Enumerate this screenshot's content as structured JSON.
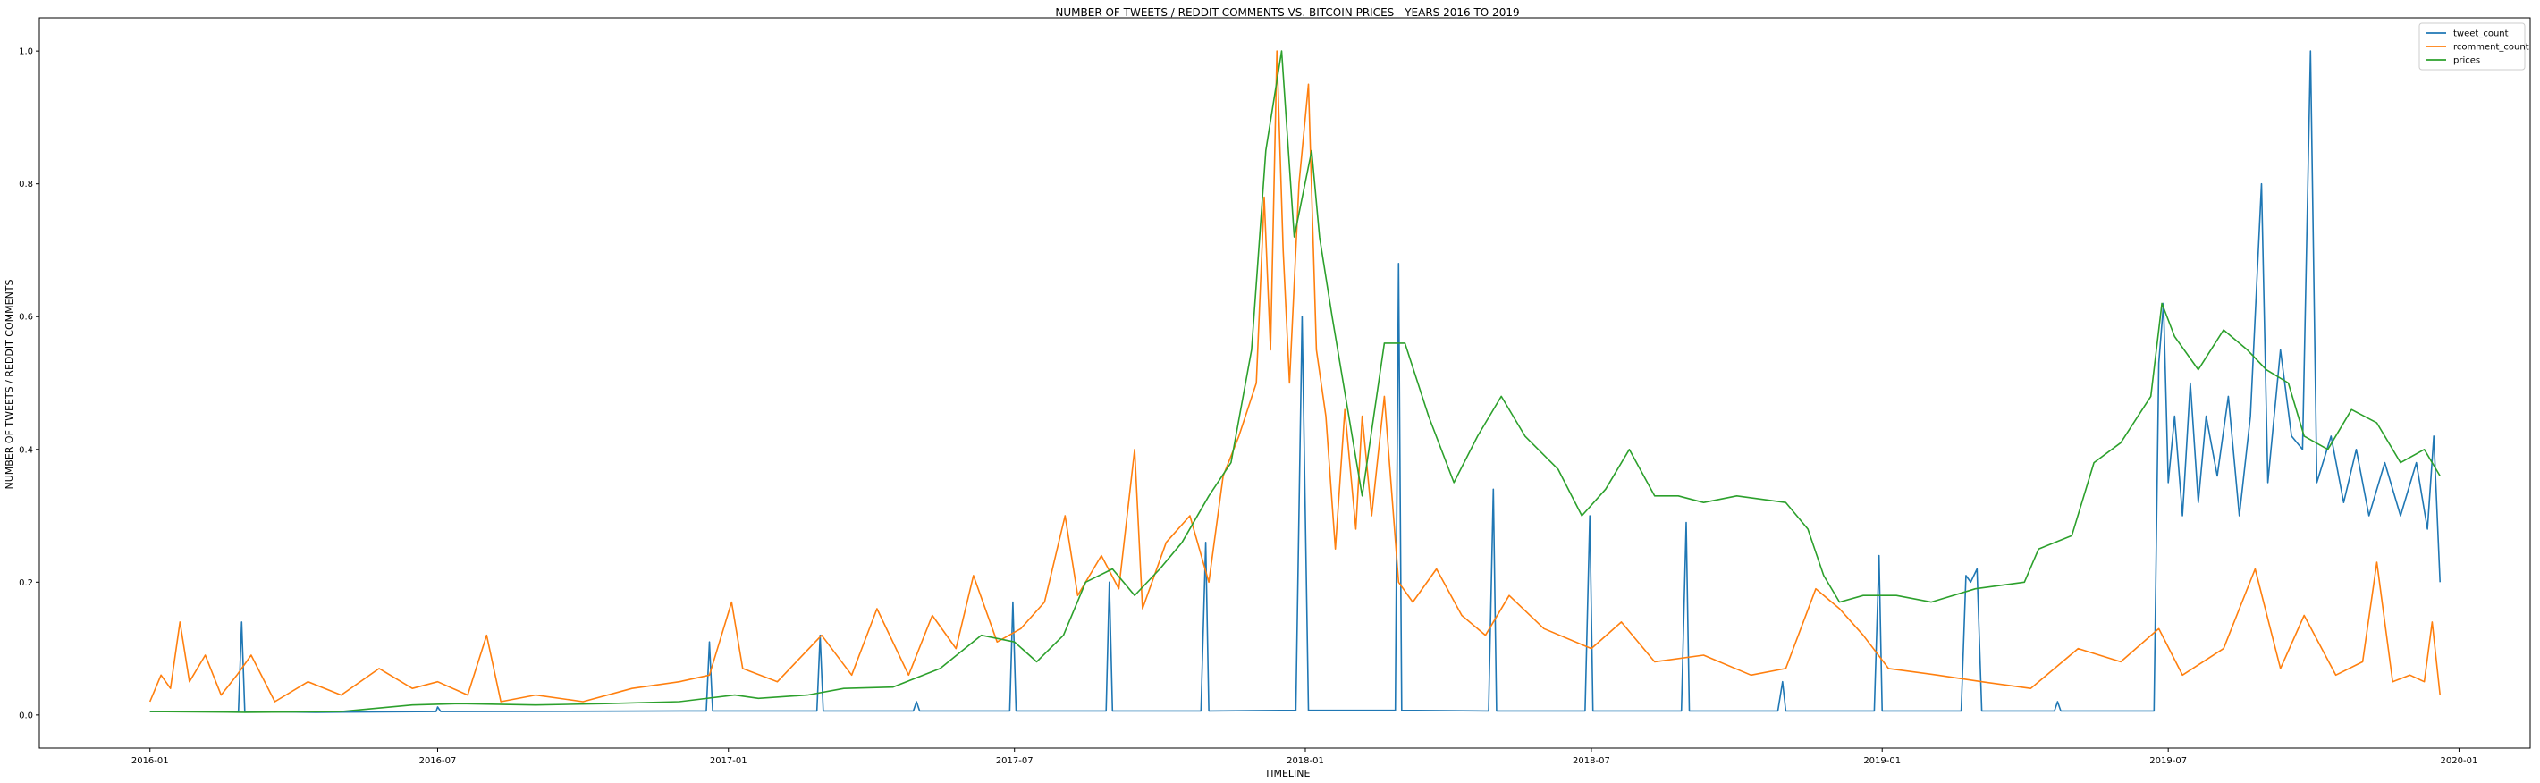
{
  "chart_data": {
    "type": "line",
    "title": "NUMBER OF TWEETS / REDDIT COMMENTS VS. BITCOIN PRICES - YEARS 2016 TO 2019",
    "xlabel": "TIMELINE",
    "ylabel": "NUMBER OF TWEETS / REDDIT COMMENTS",
    "xlim": [
      "2015-10-23",
      "2020-02-15"
    ],
    "ylim": [
      -0.05,
      1.05
    ],
    "x_ticks": [
      "2016-01",
      "2016-07",
      "2017-01",
      "2017-07",
      "2018-01",
      "2018-07",
      "2019-01",
      "2019-07",
      "2020-01"
    ],
    "y_ticks": [
      0.0,
      0.2,
      0.4,
      0.6,
      0.8,
      1.0
    ],
    "y_tick_labels": [
      "0.0",
      "0.2",
      "0.4",
      "0.6",
      "0.8",
      "1.0"
    ],
    "grid": false,
    "legend_position": "top-right",
    "series": [
      {
        "name": "tweet_count",
        "color": "#1f77b4",
        "points": [
          [
            "2016-01-01",
            0.005
          ],
          [
            "2016-02-15",
            0.005
          ],
          [
            "2016-02-26",
            0.005
          ],
          [
            "2016-02-28",
            0.14
          ],
          [
            "2016-03-01",
            0.005
          ],
          [
            "2016-04-15",
            0.004
          ],
          [
            "2016-06-30",
            0.005
          ],
          [
            "2016-07-01",
            0.012
          ],
          [
            "2016-07-03",
            0.005
          ],
          [
            "2016-12-18",
            0.006
          ],
          [
            "2016-12-20",
            0.11
          ],
          [
            "2016-12-22",
            0.006
          ],
          [
            "2017-02-26",
            0.006
          ],
          [
            "2017-02-28",
            0.12
          ],
          [
            "2017-03-02",
            0.006
          ],
          [
            "2017-04-28",
            0.006
          ],
          [
            "2017-04-30",
            0.02
          ],
          [
            "2017-05-02",
            0.006
          ],
          [
            "2017-06-28",
            0.006
          ],
          [
            "2017-06-30",
            0.17
          ],
          [
            "2017-07-02",
            0.006
          ],
          [
            "2017-08-28",
            0.006
          ],
          [
            "2017-08-30",
            0.2
          ],
          [
            "2017-09-01",
            0.006
          ],
          [
            "2017-10-27",
            0.006
          ],
          [
            "2017-10-30",
            0.26
          ],
          [
            "2017-11-01",
            0.006
          ],
          [
            "2017-12-26",
            0.007
          ],
          [
            "2017-12-30",
            0.6
          ],
          [
            "2018-01-03",
            0.007
          ],
          [
            "2018-02-27",
            0.007
          ],
          [
            "2018-03-01",
            0.68
          ],
          [
            "2018-03-03",
            0.007
          ],
          [
            "2018-04-27",
            0.006
          ],
          [
            "2018-04-30",
            0.34
          ],
          [
            "2018-05-02",
            0.006
          ],
          [
            "2018-06-27",
            0.006
          ],
          [
            "2018-06-30",
            0.3
          ],
          [
            "2018-07-02",
            0.006
          ],
          [
            "2018-08-27",
            0.006
          ],
          [
            "2018-08-30",
            0.29
          ],
          [
            "2018-09-01",
            0.006
          ],
          [
            "2018-10-27",
            0.006
          ],
          [
            "2018-10-30",
            0.05
          ],
          [
            "2018-11-01",
            0.006
          ],
          [
            "2018-12-27",
            0.006
          ],
          [
            "2018-12-30",
            0.24
          ],
          [
            "2019-01-01",
            0.006
          ],
          [
            "2019-02-20",
            0.006
          ],
          [
            "2019-02-23",
            0.21
          ],
          [
            "2019-02-26",
            0.2
          ],
          [
            "2019-03-02",
            0.22
          ],
          [
            "2019-03-05",
            0.006
          ],
          [
            "2019-04-20",
            0.006
          ],
          [
            "2019-04-22",
            0.02
          ],
          [
            "2019-04-24",
            0.006
          ],
          [
            "2019-06-22",
            0.006
          ],
          [
            "2019-06-25",
            0.53
          ],
          [
            "2019-06-28",
            0.62
          ],
          [
            "2019-07-01",
            0.35
          ],
          [
            "2019-07-05",
            0.45
          ],
          [
            "2019-07-10",
            0.3
          ],
          [
            "2019-07-15",
            0.5
          ],
          [
            "2019-07-20",
            0.32
          ],
          [
            "2019-07-25",
            0.45
          ],
          [
            "2019-08-01",
            0.36
          ],
          [
            "2019-08-08",
            0.48
          ],
          [
            "2019-08-15",
            0.3
          ],
          [
            "2019-08-22",
            0.45
          ],
          [
            "2019-08-29",
            0.8
          ],
          [
            "2019-09-02",
            0.35
          ],
          [
            "2019-09-10",
            0.55
          ],
          [
            "2019-09-17",
            0.42
          ],
          [
            "2019-09-24",
            0.4
          ],
          [
            "2019-09-29",
            1.0
          ],
          [
            "2019-10-03",
            0.35
          ],
          [
            "2019-10-12",
            0.42
          ],
          [
            "2019-10-20",
            0.32
          ],
          [
            "2019-10-28",
            0.4
          ],
          [
            "2019-11-05",
            0.3
          ],
          [
            "2019-11-15",
            0.38
          ],
          [
            "2019-11-25",
            0.3
          ],
          [
            "2019-12-05",
            0.38
          ],
          [
            "2019-12-12",
            0.28
          ],
          [
            "2019-12-16",
            0.42
          ],
          [
            "2019-12-20",
            0.2
          ]
        ]
      },
      {
        "name": "rcomment_count",
        "color": "#ff7f0e",
        "points": [
          [
            "2016-01-01",
            0.02
          ],
          [
            "2016-01-08",
            0.06
          ],
          [
            "2016-01-14",
            0.04
          ],
          [
            "2016-01-20",
            0.14
          ],
          [
            "2016-01-26",
            0.05
          ],
          [
            "2016-02-05",
            0.09
          ],
          [
            "2016-02-15",
            0.03
          ],
          [
            "2016-02-25",
            0.06
          ],
          [
            "2016-03-05",
            0.09
          ],
          [
            "2016-03-20",
            0.02
          ],
          [
            "2016-04-10",
            0.05
          ],
          [
            "2016-05-01",
            0.03
          ],
          [
            "2016-05-25",
            0.07
          ],
          [
            "2016-06-15",
            0.04
          ],
          [
            "2016-07-01",
            0.05
          ],
          [
            "2016-07-20",
            0.03
          ],
          [
            "2016-08-01",
            0.12
          ],
          [
            "2016-08-10",
            0.02
          ],
          [
            "2016-09-01",
            0.03
          ],
          [
            "2016-10-01",
            0.02
          ],
          [
            "2016-11-01",
            0.04
          ],
          [
            "2016-12-01",
            0.05
          ],
          [
            "2016-12-20",
            0.06
          ],
          [
            "2017-01-03",
            0.17
          ],
          [
            "2017-01-10",
            0.07
          ],
          [
            "2017-02-01",
            0.05
          ],
          [
            "2017-03-01",
            0.12
          ],
          [
            "2017-03-20",
            0.06
          ],
          [
            "2017-04-05",
            0.16
          ],
          [
            "2017-04-25",
            0.06
          ],
          [
            "2017-05-10",
            0.15
          ],
          [
            "2017-05-25",
            0.1
          ],
          [
            "2017-06-05",
            0.21
          ],
          [
            "2017-06-20",
            0.11
          ],
          [
            "2017-07-05",
            0.13
          ],
          [
            "2017-07-20",
            0.17
          ],
          [
            "2017-08-02",
            0.3
          ],
          [
            "2017-08-10",
            0.18
          ],
          [
            "2017-08-25",
            0.24
          ],
          [
            "2017-09-05",
            0.19
          ],
          [
            "2017-09-15",
            0.4
          ],
          [
            "2017-09-20",
            0.16
          ],
          [
            "2017-10-05",
            0.26
          ],
          [
            "2017-10-20",
            0.3
          ],
          [
            "2017-11-01",
            0.2
          ],
          [
            "2017-11-10",
            0.36
          ],
          [
            "2017-11-20",
            0.42
          ],
          [
            "2017-12-01",
            0.5
          ],
          [
            "2017-12-06",
            0.78
          ],
          [
            "2017-12-10",
            0.55
          ],
          [
            "2017-12-14",
            1.0
          ],
          [
            "2017-12-18",
            0.7
          ],
          [
            "2017-12-22",
            0.5
          ],
          [
            "2017-12-28",
            0.8
          ],
          [
            "2018-01-03",
            0.95
          ],
          [
            "2018-01-08",
            0.55
          ],
          [
            "2018-01-14",
            0.45
          ],
          [
            "2018-01-20",
            0.25
          ],
          [
            "2018-01-26",
            0.46
          ],
          [
            "2018-02-02",
            0.28
          ],
          [
            "2018-02-06",
            0.45
          ],
          [
            "2018-02-12",
            0.3
          ],
          [
            "2018-02-20",
            0.48
          ],
          [
            "2018-03-01",
            0.2
          ],
          [
            "2018-03-10",
            0.17
          ],
          [
            "2018-03-25",
            0.22
          ],
          [
            "2018-04-10",
            0.15
          ],
          [
            "2018-04-25",
            0.12
          ],
          [
            "2018-05-10",
            0.18
          ],
          [
            "2018-06-01",
            0.13
          ],
          [
            "2018-07-01",
            0.1
          ],
          [
            "2018-07-20",
            0.14
          ],
          [
            "2018-08-10",
            0.08
          ],
          [
            "2018-09-10",
            0.09
          ],
          [
            "2018-10-10",
            0.06
          ],
          [
            "2018-11-01",
            0.07
          ],
          [
            "2018-11-20",
            0.19
          ],
          [
            "2018-12-05",
            0.16
          ],
          [
            "2018-12-20",
            0.12
          ],
          [
            "2019-01-05",
            0.07
          ],
          [
            "2019-02-05",
            0.06
          ],
          [
            "2019-03-05",
            0.05
          ],
          [
            "2019-04-05",
            0.04
          ],
          [
            "2019-05-05",
            0.1
          ],
          [
            "2019-06-01",
            0.08
          ],
          [
            "2019-06-25",
            0.13
          ],
          [
            "2019-07-10",
            0.06
          ],
          [
            "2019-08-05",
            0.1
          ],
          [
            "2019-08-25",
            0.22
          ],
          [
            "2019-09-10",
            0.07
          ],
          [
            "2019-09-25",
            0.15
          ],
          [
            "2019-10-15",
            0.06
          ],
          [
            "2019-11-01",
            0.08
          ],
          [
            "2019-11-10",
            0.23
          ],
          [
            "2019-11-20",
            0.05
          ],
          [
            "2019-12-01",
            0.06
          ],
          [
            "2019-12-10",
            0.05
          ],
          [
            "2019-12-15",
            0.14
          ],
          [
            "2019-12-20",
            0.03
          ]
        ]
      },
      {
        "name": "prices",
        "color": "#2ca02c",
        "points": [
          [
            "2016-01-01",
            0.005
          ],
          [
            "2016-03-01",
            0.004
          ],
          [
            "2016-05-01",
            0.005
          ],
          [
            "2016-06-15",
            0.015
          ],
          [
            "2016-07-15",
            0.017
          ],
          [
            "2016-09-01",
            0.015
          ],
          [
            "2016-10-15",
            0.017
          ],
          [
            "2016-12-01",
            0.02
          ],
          [
            "2017-01-05",
            0.03
          ],
          [
            "2017-01-20",
            0.025
          ],
          [
            "2017-02-20",
            0.03
          ],
          [
            "2017-03-15",
            0.04
          ],
          [
            "2017-04-15",
            0.042
          ],
          [
            "2017-05-15",
            0.07
          ],
          [
            "2017-06-10",
            0.12
          ],
          [
            "2017-07-01",
            0.11
          ],
          [
            "2017-07-15",
            0.08
          ],
          [
            "2017-08-01",
            0.12
          ],
          [
            "2017-08-15",
            0.2
          ],
          [
            "2017-09-01",
            0.22
          ],
          [
            "2017-09-15",
            0.18
          ],
          [
            "2017-10-01",
            0.22
          ],
          [
            "2017-10-15",
            0.26
          ],
          [
            "2017-11-01",
            0.33
          ],
          [
            "2017-11-15",
            0.38
          ],
          [
            "2017-11-28",
            0.55
          ],
          [
            "2017-12-07",
            0.85
          ],
          [
            "2017-12-17",
            1.0
          ],
          [
            "2017-12-25",
            0.72
          ],
          [
            "2018-01-05",
            0.85
          ],
          [
            "2018-01-10",
            0.72
          ],
          [
            "2018-01-18",
            0.6
          ],
          [
            "2018-02-06",
            0.33
          ],
          [
            "2018-02-20",
            0.56
          ],
          [
            "2018-03-05",
            0.56
          ],
          [
            "2018-03-20",
            0.45
          ],
          [
            "2018-04-05",
            0.35
          ],
          [
            "2018-04-20",
            0.42
          ],
          [
            "2018-05-05",
            0.48
          ],
          [
            "2018-05-20",
            0.42
          ],
          [
            "2018-06-10",
            0.37
          ],
          [
            "2018-06-25",
            0.3
          ],
          [
            "2018-07-10",
            0.34
          ],
          [
            "2018-07-25",
            0.4
          ],
          [
            "2018-08-10",
            0.33
          ],
          [
            "2018-08-25",
            0.33
          ],
          [
            "2018-09-10",
            0.32
          ],
          [
            "2018-10-01",
            0.33
          ],
          [
            "2018-11-01",
            0.32
          ],
          [
            "2018-11-15",
            0.28
          ],
          [
            "2018-11-25",
            0.21
          ],
          [
            "2018-12-05",
            0.17
          ],
          [
            "2018-12-20",
            0.18
          ],
          [
            "2019-01-10",
            0.18
          ],
          [
            "2019-02-01",
            0.17
          ],
          [
            "2019-03-01",
            0.19
          ],
          [
            "2019-04-01",
            0.2
          ],
          [
            "2019-04-10",
            0.25
          ],
          [
            "2019-05-01",
            0.27
          ],
          [
            "2019-05-15",
            0.38
          ],
          [
            "2019-06-01",
            0.41
          ],
          [
            "2019-06-20",
            0.48
          ],
          [
            "2019-06-27",
            0.62
          ],
          [
            "2019-07-05",
            0.57
          ],
          [
            "2019-07-20",
            0.52
          ],
          [
            "2019-08-05",
            0.58
          ],
          [
            "2019-08-20",
            0.55
          ],
          [
            "2019-09-01",
            0.52
          ],
          [
            "2019-09-15",
            0.5
          ],
          [
            "2019-09-25",
            0.42
          ],
          [
            "2019-10-10",
            0.4
          ],
          [
            "2019-10-25",
            0.46
          ],
          [
            "2019-11-10",
            0.44
          ],
          [
            "2019-11-25",
            0.38
          ],
          [
            "2019-12-10",
            0.4
          ],
          [
            "2019-12-20",
            0.36
          ]
        ]
      }
    ]
  }
}
